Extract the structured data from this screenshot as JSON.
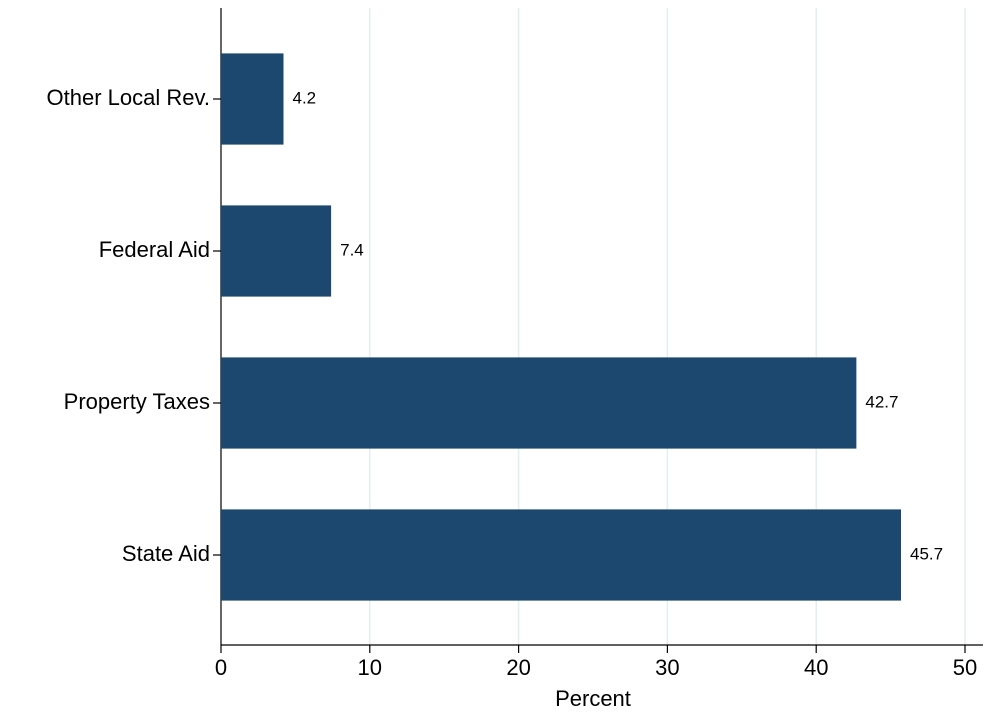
{
  "chart_data": {
    "type": "hbar",
    "x_label": "Percent",
    "categories": [
      "Other Local Rev.",
      "Federal Aid",
      "Property Taxes",
      "State Aid"
    ],
    "values": [
      4.2,
      7.4,
      42.7,
      45.7
    ],
    "color": "#1c476e",
    "xlim": [
      0,
      50
    ],
    "xticks": [
      0,
      10,
      20,
      30,
      40,
      50
    ],
    "grid": true,
    "grid_color": "#e3eeee"
  }
}
